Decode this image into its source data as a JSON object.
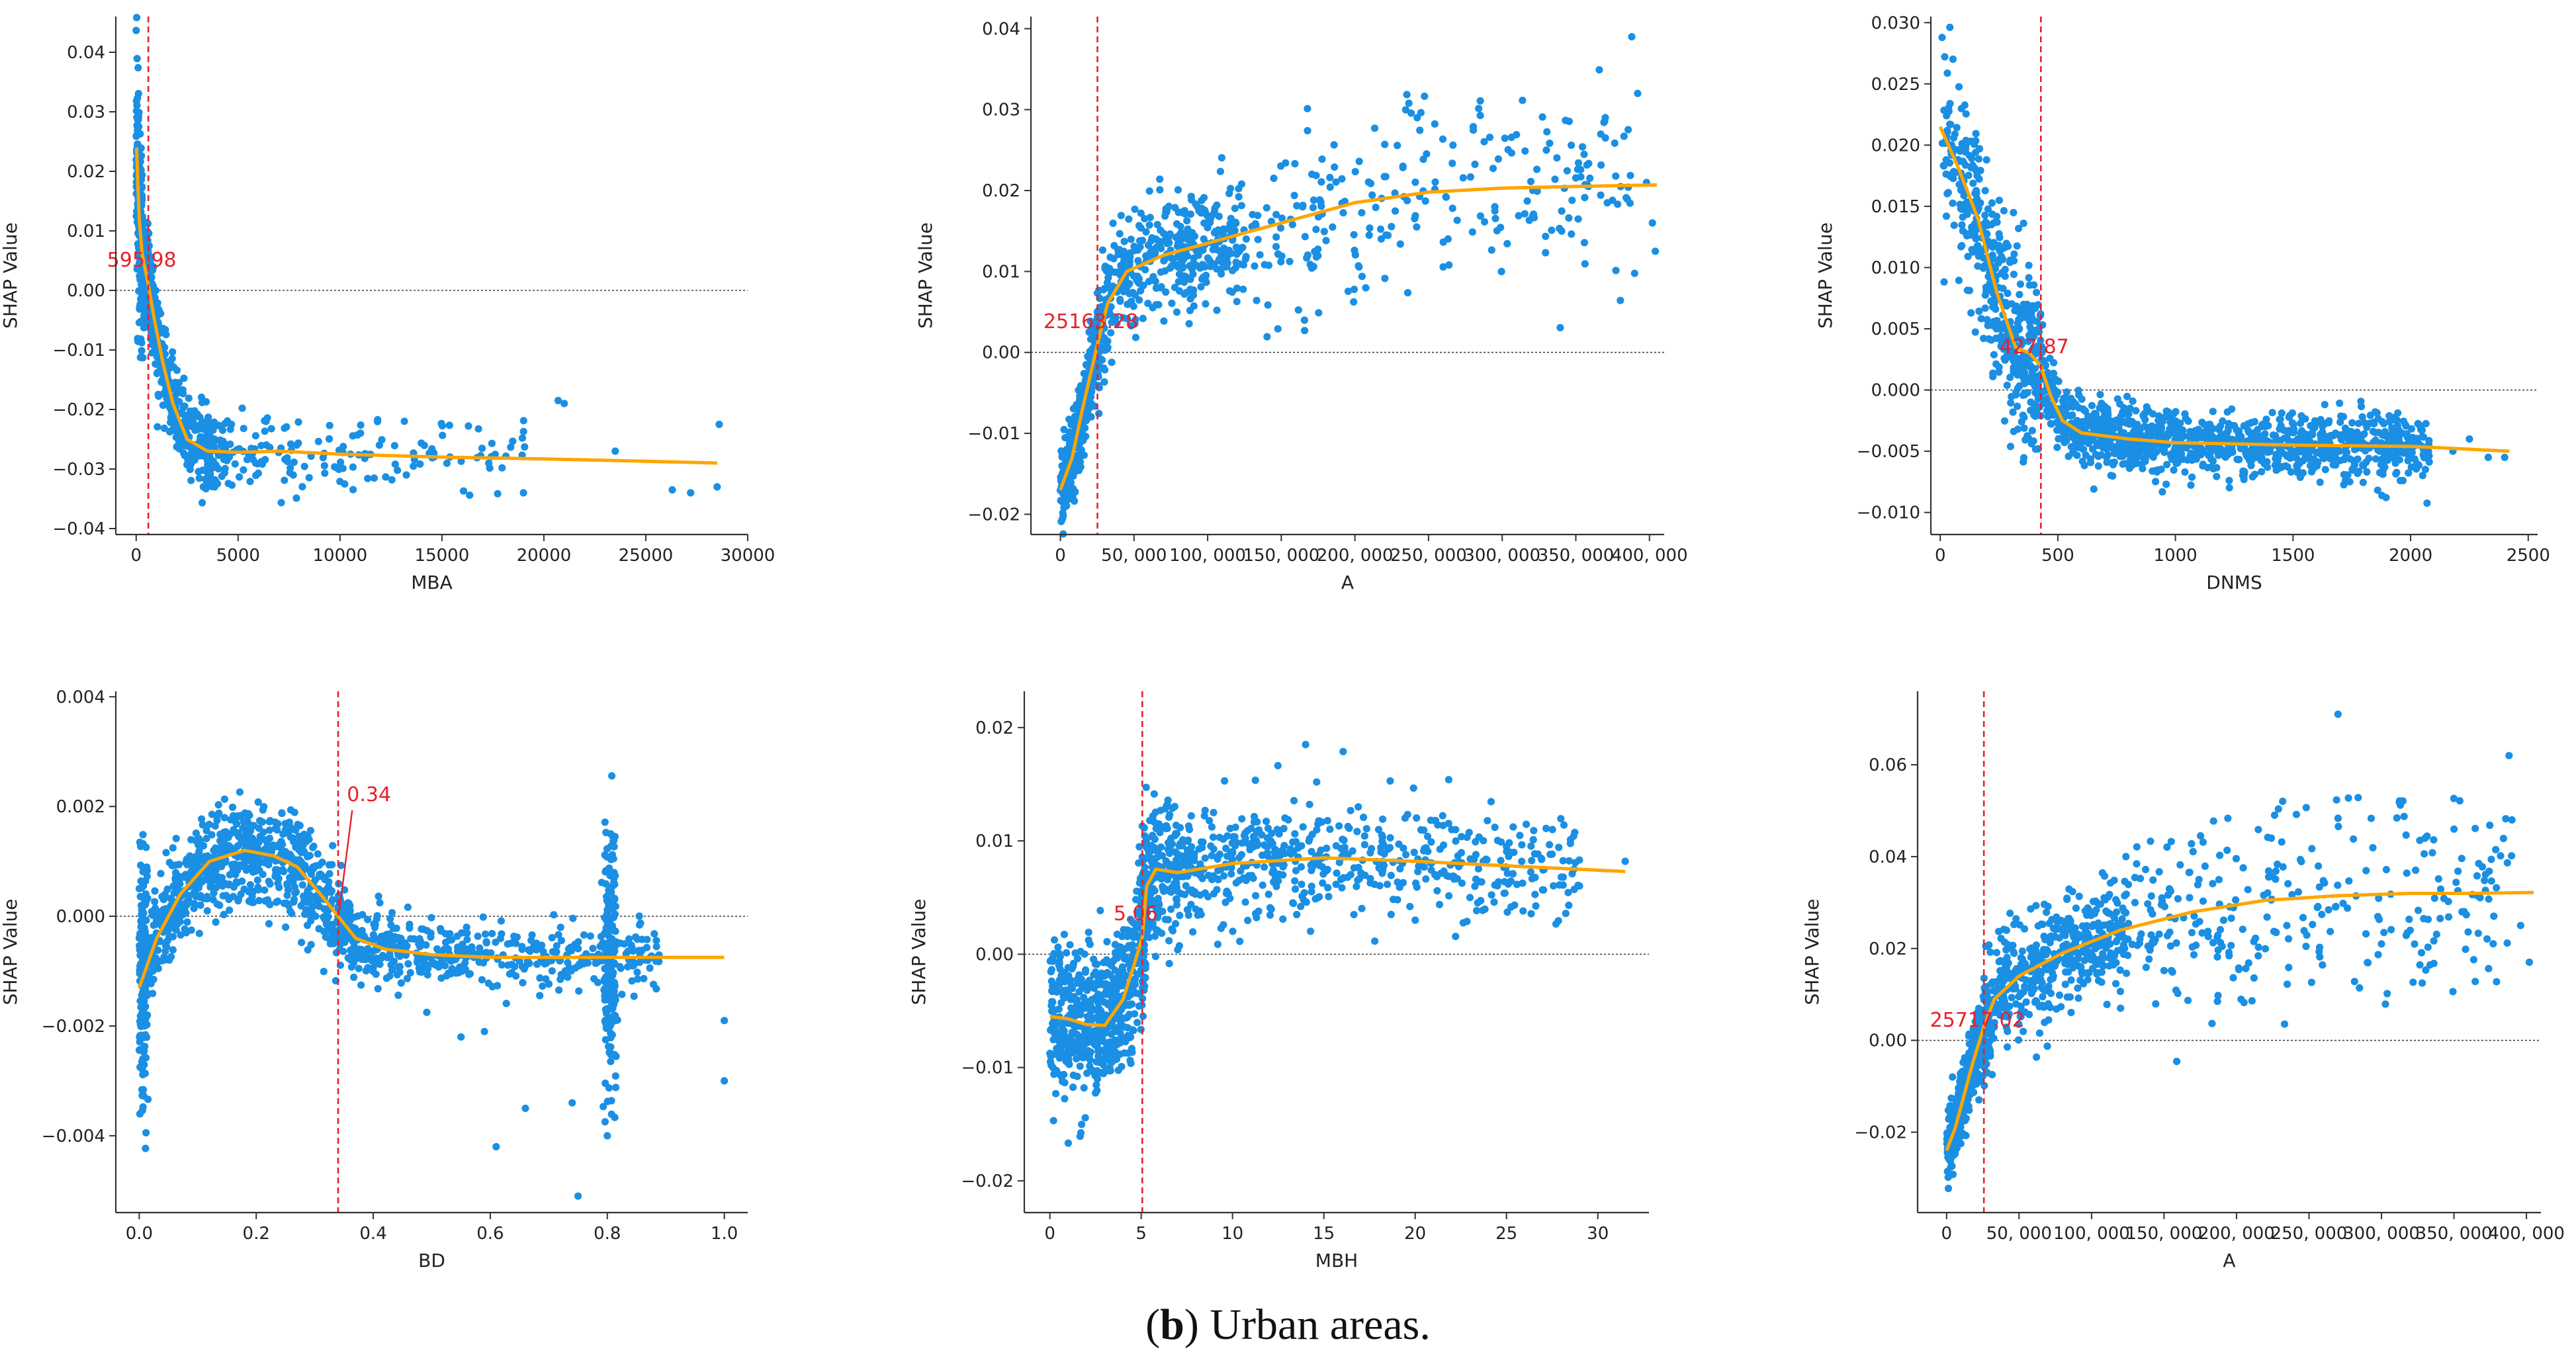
{
  "caption": {
    "label": "b",
    "text": "Urban areas."
  },
  "colors": {
    "points": "#1a8fe3",
    "trend": "#ffa500",
    "threshold": "#e8202a",
    "zero_line": "#444444",
    "axis": "#333333"
  },
  "chart_data": [
    {
      "type": "scatter",
      "xlabel": "MBA",
      "ylabel": "SHAP Value",
      "xlim": [
        -1000,
        30000
      ],
      "ylim": [
        -0.041,
        0.046
      ],
      "xticks": [
        0,
        5000,
        10000,
        15000,
        20000,
        25000,
        30000
      ],
      "xtick_labels": [
        "0",
        "5000",
        "10000",
        "15000",
        "20000",
        "25000",
        "30000"
      ],
      "yticks": [
        -0.04,
        -0.03,
        -0.02,
        -0.01,
        0.0,
        0.01,
        0.02,
        0.03,
        0.04
      ],
      "ytick_labels": [
        "−0.04",
        "−0.03",
        "−0.02",
        "−0.01",
        "0.00",
        "0.01",
        "0.02",
        "0.03",
        "0.04"
      ],
      "threshold": {
        "x": 595.98,
        "label": "595.98",
        "label_y": 0.004
      },
      "trend": {
        "x": [
          20,
          80,
          150,
          300,
          595,
          900,
          1300,
          1800,
          2500,
          3500,
          5000,
          7000,
          10000,
          15000,
          20000,
          25000,
          28500
        ],
        "y": [
          0.024,
          0.018,
          0.012,
          0.006,
          0.001,
          -0.005,
          -0.012,
          -0.019,
          -0.025,
          -0.027,
          -0.0272,
          -0.027,
          -0.0275,
          -0.028,
          -0.0283,
          -0.0287,
          -0.029
        ]
      },
      "extra_points": [
        [
          20700,
          -0.0185
        ],
        [
          21000,
          -0.019
        ],
        [
          23500,
          -0.027
        ],
        [
          26300,
          -0.0335
        ],
        [
          27200,
          -0.034
        ],
        [
          28600,
          -0.0225
        ],
        [
          28500,
          -0.033
        ],
        [
          19000,
          -0.034
        ]
      ]
    },
    {
      "type": "scatter",
      "xlabel": "A",
      "ylabel": "SHAP Value",
      "xlim": [
        -20000,
        410000
      ],
      "ylim": [
        -0.0225,
        0.0415
      ],
      "xticks": [
        0,
        50000,
        100000,
        150000,
        200000,
        250000,
        300000,
        350000,
        400000
      ],
      "xtick_labels": [
        "0",
        "50, 000",
        "100, 000",
        "150, 000",
        "200, 000",
        "250, 000",
        "300, 000",
        "350, 000",
        "400, 000"
      ],
      "yticks": [
        -0.02,
        -0.01,
        0.0,
        0.01,
        0.02,
        0.03,
        0.04
      ],
      "ytick_labels": [
        "−0.02",
        "−0.01",
        "0.00",
        "0.01",
        "0.02",
        "0.03",
        "0.04"
      ],
      "threshold": {
        "x": 25163.28,
        "label": "25163.28",
        "label_y": 0.003
      },
      "trend": {
        "x": [
          0,
          8000,
          15000,
          25163,
          32000,
          45000,
          70000,
          100000,
          150000,
          200000,
          250000,
          300000,
          350000,
          405000
        ],
        "y": [
          -0.017,
          -0.013,
          -0.007,
          0.001,
          0.006,
          0.01,
          0.012,
          0.0135,
          0.016,
          0.0185,
          0.0198,
          0.0203,
          0.0205,
          0.0207
        ]
      },
      "extra_points": [
        [
          388000,
          0.039
        ],
        [
          392000,
          0.032
        ],
        [
          398000,
          0.021
        ],
        [
          402000,
          0.016
        ],
        [
          404000,
          0.0125
        ],
        [
          370000,
          0.029
        ],
        [
          330000,
          0.025
        ],
        [
          295000,
          0.018
        ]
      ]
    },
    {
      "type": "scatter",
      "xlabel": "DNMS",
      "ylabel": "SHAP Value",
      "xlim": [
        -40,
        2540
      ],
      "ylim": [
        -0.0118,
        0.0305
      ],
      "xticks": [
        0,
        500,
        1000,
        1500,
        2000,
        2500
      ],
      "xtick_labels": [
        "0",
        "500",
        "1000",
        "1500",
        "2000",
        "2500"
      ],
      "yticks": [
        -0.01,
        -0.005,
        0.0,
        0.005,
        0.01,
        0.015,
        0.02,
        0.025,
        0.03
      ],
      "ytick_labels": [
        "−0.010",
        "−0.005",
        "0.000",
        "0.005",
        "0.010",
        "0.015",
        "0.020",
        "0.025",
        "0.030"
      ],
      "threshold": {
        "x": 427.87,
        "label": "427.87",
        "label_y": 0.003
      },
      "trend": {
        "x": [
          0,
          80,
          160,
          240,
          320,
          380,
          427,
          470,
          520,
          600,
          800,
          1000,
          1500,
          2000,
          2420
        ],
        "y": [
          0.0215,
          0.018,
          0.014,
          0.008,
          0.0035,
          0.003,
          0.002,
          -0.0005,
          -0.0025,
          -0.0035,
          -0.004,
          -0.0043,
          -0.0045,
          -0.0046,
          -0.005
        ]
      },
      "extra_points": [
        [
          2330,
          -0.0055
        ],
        [
          2400,
          -0.0055
        ],
        [
          2250,
          -0.004
        ],
        [
          2180,
          -0.005
        ]
      ]
    },
    {
      "type": "scatter",
      "xlabel": "BD",
      "ylabel": "SHAP Value",
      "xlim": [
        -0.04,
        1.04
      ],
      "ylim": [
        -0.0054,
        0.0041
      ],
      "xticks": [
        0.0,
        0.2,
        0.4,
        0.6,
        0.8,
        1.0
      ],
      "xtick_labels": [
        "0.0",
        "0.2",
        "0.4",
        "0.6",
        "0.8",
        "1.0"
      ],
      "yticks": [
        -0.004,
        -0.002,
        0.0,
        0.002,
        0.004
      ],
      "ytick_labels": [
        "−0.004",
        "−0.002",
        "0.000",
        "0.002",
        "0.004"
      ],
      "threshold": {
        "x": 0.34,
        "label": "0.34",
        "label_pos": [
          0.355,
          0.0021
        ],
        "arrow_to": [
          0.342,
          0.0001
        ]
      },
      "trend": {
        "x": [
          0.0,
          0.03,
          0.07,
          0.12,
          0.18,
          0.23,
          0.27,
          0.31,
          0.34,
          0.37,
          0.42,
          0.5,
          0.6,
          0.8,
          1.0
        ],
        "y": [
          -0.0013,
          -0.0004,
          0.0004,
          0.001,
          0.0012,
          0.0011,
          0.0009,
          0.0004,
          0.0,
          -0.0004,
          -0.0006,
          -0.0007,
          -0.00075,
          -0.00075,
          -0.00075
        ]
      },
      "extra_points": [
        [
          0.75,
          -0.0051
        ],
        [
          0.8,
          -0.004
        ],
        [
          0.61,
          -0.0042
        ],
        [
          0.66,
          -0.0035
        ],
        [
          0.74,
          -0.0034
        ],
        [
          1.0,
          -0.003
        ],
        [
          1.0,
          -0.0019
        ],
        [
          0.59,
          -0.0021
        ],
        [
          0.55,
          -0.0022
        ]
      ]
    },
    {
      "type": "scatter",
      "xlabel": "MBH",
      "ylabel": "SHAP Value",
      "xlim": [
        -1.4,
        32.8
      ],
      "ylim": [
        -0.0228,
        0.0232
      ],
      "xticks": [
        0,
        5,
        10,
        15,
        20,
        25,
        30
      ],
      "xtick_labels": [
        "0",
        "5",
        "10",
        "15",
        "20",
        "25",
        "30"
      ],
      "yticks": [
        -0.02,
        -0.01,
        0.0,
        0.01,
        0.02
      ],
      "ytick_labels": [
        "−0.02",
        "−0.01",
        "0.00",
        "0.01",
        "0.02"
      ],
      "threshold": {
        "x": 5.06,
        "label": "5.06",
        "label_y": 0.003
      },
      "trend": {
        "x": [
          0,
          1,
          2,
          3,
          4,
          4.6,
          5.06,
          5.3,
          5.8,
          7,
          10,
          15,
          20,
          25,
          31.5
        ],
        "y": [
          -0.0055,
          -0.0057,
          -0.0062,
          -0.0063,
          -0.004,
          -0.001,
          0.0015,
          0.006,
          0.0075,
          0.0072,
          0.008,
          0.0085,
          0.0082,
          0.0078,
          0.0073
        ]
      },
      "extra_points": [
        [
          31.5,
          0.0082
        ],
        [
          28,
          0.0068
        ],
        [
          25,
          0.0095
        ],
        [
          22,
          0.011
        ],
        [
          18,
          0.011
        ],
        [
          14,
          0.0185
        ],
        [
          20,
          0.003
        ],
        [
          23,
          0.005
        ]
      ]
    },
    {
      "type": "scatter",
      "xlabel": "A",
      "ylabel": "SHAP Value",
      "xlim": [
        -20000,
        410000
      ],
      "ylim": [
        -0.0375,
        0.076
      ],
      "xticks": [
        0,
        50000,
        100000,
        150000,
        200000,
        250000,
        300000,
        350000,
        400000
      ],
      "xtick_labels": [
        "0",
        "50, 000",
        "100, 000",
        "150, 000",
        "200, 000",
        "250, 000",
        "300, 000",
        "350, 000",
        "400, 000"
      ],
      "yticks": [
        -0.02,
        0.0,
        0.02,
        0.04,
        0.06
      ],
      "ytick_labels": [
        "−0.02",
        "0.00",
        "0.02",
        "0.04",
        "0.06"
      ],
      "threshold": {
        "x": 25717.02,
        "label": "25717.02",
        "label_y": 0.003
      },
      "trend": {
        "x": [
          0,
          6000,
          12000,
          18000,
          25717,
          33000,
          50000,
          80000,
          120000,
          170000,
          220000,
          270000,
          320000,
          360000,
          405000
        ],
        "y": [
          -0.024,
          -0.019,
          -0.012,
          -0.005,
          0.003,
          0.009,
          0.014,
          0.019,
          0.024,
          0.028,
          0.0305,
          0.0315,
          0.032,
          0.032,
          0.0322
        ]
      },
      "extra_points": [
        [
          388000,
          0.062
        ],
        [
          390000,
          0.048
        ],
        [
          396000,
          0.025
        ],
        [
          402000,
          0.017
        ],
        [
          350000,
          0.046
        ],
        [
          330000,
          0.044
        ],
        [
          300000,
          0.021
        ],
        [
          270000,
          0.071
        ]
      ]
    }
  ]
}
